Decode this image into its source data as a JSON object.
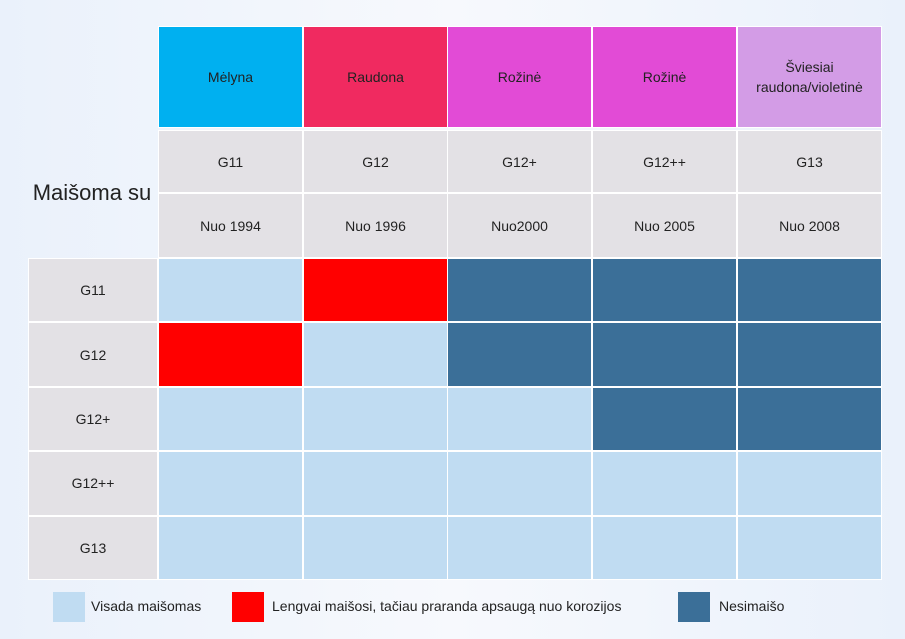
{
  "chart_data": {
    "type": "table",
    "corner_label": "Maišoma su",
    "columns": [
      {
        "color_name": "Mėlyna",
        "color": "#00b0f0",
        "code": "G11",
        "since": "Nuo 1994"
      },
      {
        "color_name": "Raudona",
        "color": "#f02a60",
        "code": "G12",
        "since": "Nuo 1996"
      },
      {
        "color_name": "Rožinė",
        "color": "#e24bd6",
        "code": "G12+",
        "since": "Nuo2000"
      },
      {
        "color_name": "Rožinė",
        "color": "#e24bd6",
        "code": "G12++",
        "since": "Nuo 2005"
      },
      {
        "color_name": "Šviesiai raudona/violetinė",
        "color": "#d39ce6",
        "code": "G13",
        "since": "Nuo 2008"
      }
    ],
    "rows": [
      "G11",
      "G12",
      "G12+",
      "G12++",
      "G13"
    ],
    "matrix": [
      [
        "mix",
        "loss",
        "no",
        "no",
        "no"
      ],
      [
        "loss",
        "mix",
        "no",
        "no",
        "no"
      ],
      [
        "mix",
        "mix",
        "mix",
        "no",
        "no"
      ],
      [
        "mix",
        "mix",
        "mix",
        "mix",
        "mix"
      ],
      [
        "mix",
        "mix",
        "mix",
        "mix",
        "mix"
      ]
    ],
    "legend": [
      {
        "key": "mix",
        "label": "Visada maišomas",
        "color": "#c0dcf2"
      },
      {
        "key": "loss",
        "label": "Lengvai maišosi, tačiau praranda apsaugą nuo korozijos",
        "color": "#ff0000"
      },
      {
        "key": "no",
        "label": "Nesimaišo",
        "color": "#3b6f98"
      }
    ]
  }
}
